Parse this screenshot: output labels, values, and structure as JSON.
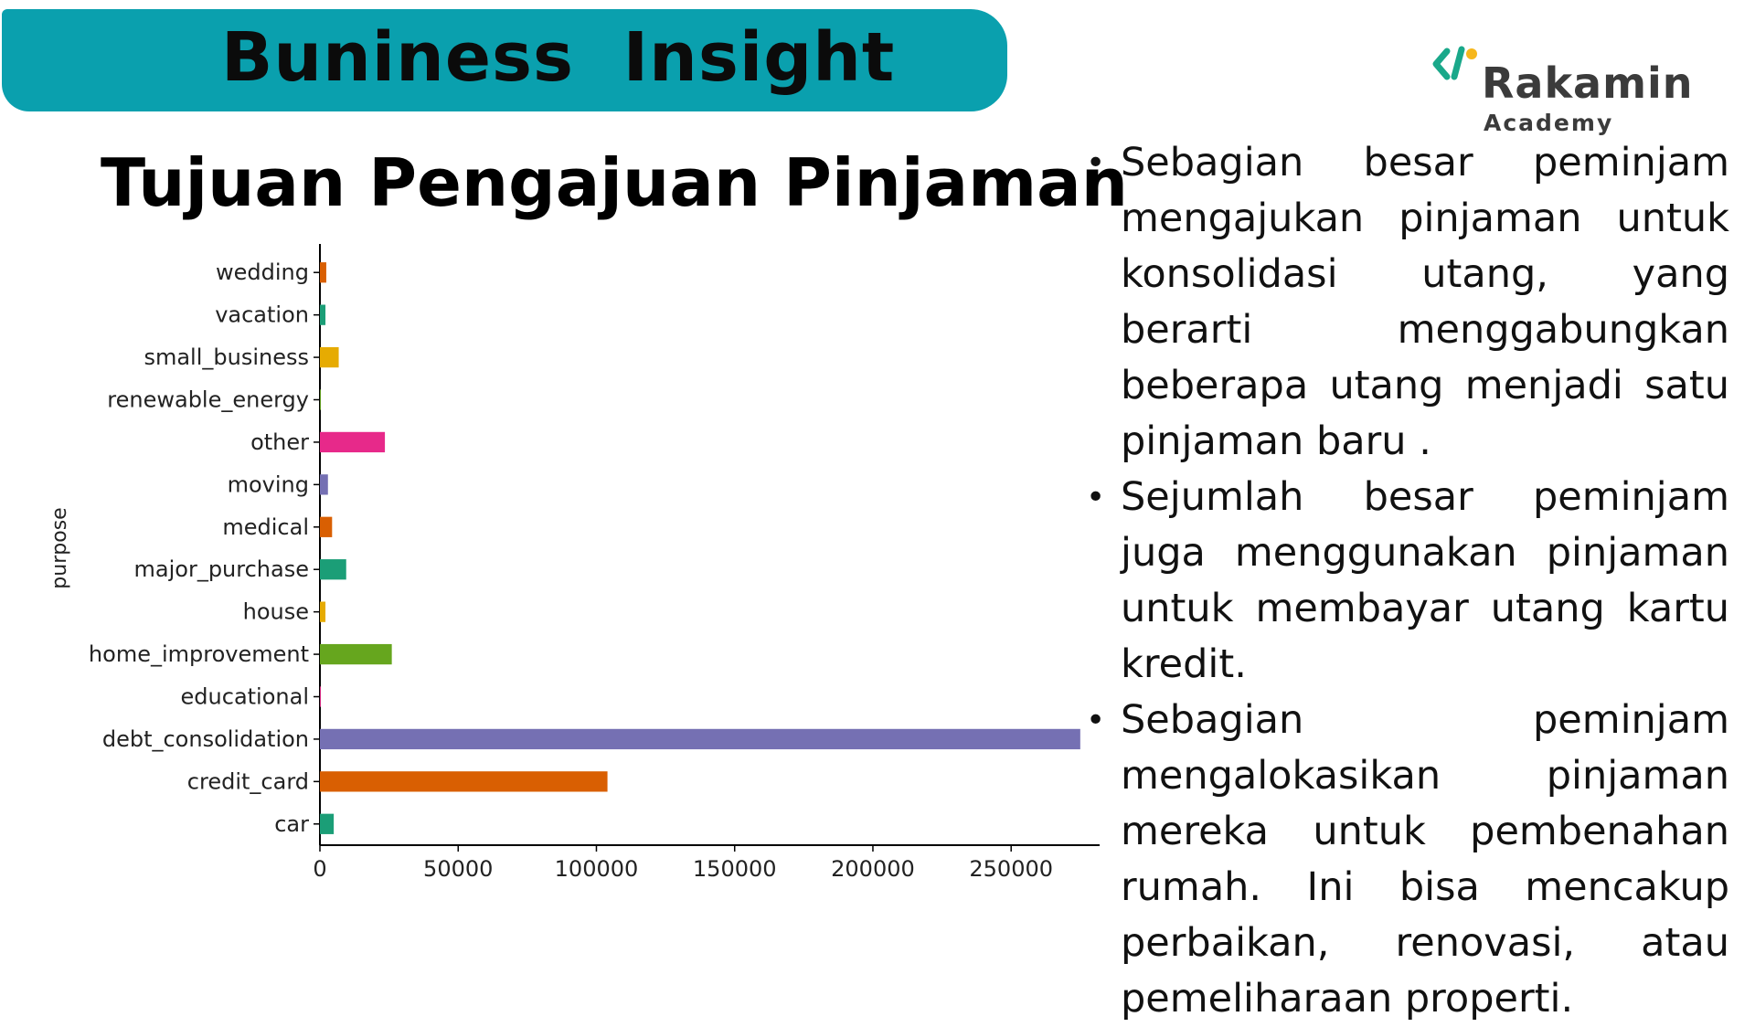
{
  "header": {
    "banner_title": "Buniness  Insight"
  },
  "logo": {
    "name": "Rakamin",
    "sub": "Academy",
    "colors": {
      "green": "#1aa88a",
      "yellow": "#f6b71c"
    }
  },
  "chart_data": {
    "type": "bar",
    "orientation": "horizontal",
    "title": "Tujuan Pengajuan Pinjaman",
    "ylabel": "purpose",
    "xlabel": "",
    "categories": [
      "car",
      "credit_card",
      "debt_consolidation",
      "educational",
      "home_improvement",
      "house",
      "major_purchase",
      "medical",
      "moving",
      "other",
      "renewable_energy",
      "small_business",
      "vacation",
      "wedding"
    ],
    "values": [
      5000,
      104000,
      275000,
      300,
      26000,
      2000,
      9500,
      4400,
      2900,
      23500,
      300,
      6800,
      2000,
      2300
    ],
    "colors": [
      "#1b9e77",
      "#d95f02",
      "#7570b3",
      "#e7298a",
      "#66a61e",
      "#e6ab02",
      "#1b9e77",
      "#d95f02",
      "#7570b3",
      "#e7298a",
      "#66a61e",
      "#e6ab02",
      "#1b9e77",
      "#d95f02"
    ],
    "xticks": [
      "0",
      "50000",
      "100000",
      "150000",
      "200000",
      "250000"
    ],
    "xlim": [
      0,
      282000
    ],
    "grid": false
  },
  "insights": [
    "Sebagian besar peminjam mengajukan pinjaman untuk konsolidasi utang, yang berarti menggabungkan beberapa utang menjadi satu pinjaman baru .",
    "Sejumlah besar peminjam juga menggunakan pinjaman untuk membayar utang kartu kredit.",
    "Sebagian peminjam mengalokasikan pinjaman mereka untuk pembenahan rumah. Ini bisa mencakup perbaikan, renovasi, atau pemeliharaan properti."
  ],
  "bullet_symbol": "•"
}
